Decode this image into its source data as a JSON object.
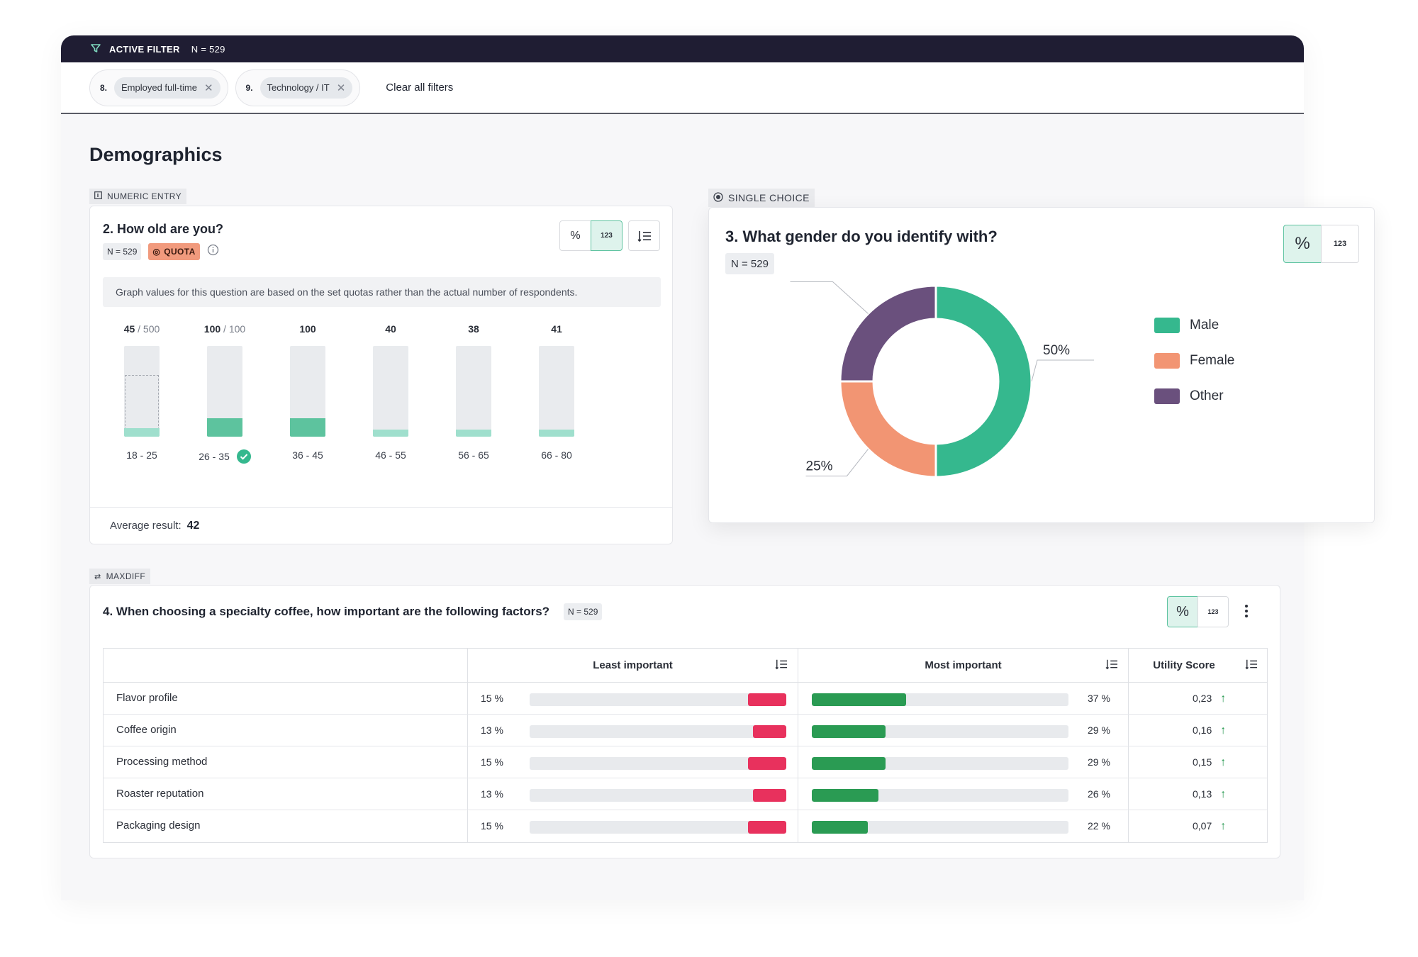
{
  "filter_bar": {
    "label": "ACTIVE FILTER",
    "n": "N = 529"
  },
  "chips": [
    {
      "num": "8.",
      "label": "Employed full-time"
    },
    {
      "num": "9.",
      "label": "Technology / IT"
    }
  ],
  "clear_label": "Clear all filters",
  "page_title": "Demographics",
  "q2": {
    "tag": "NUMERIC ENTRY",
    "title": "2. How old are you?",
    "n": "N = 529",
    "quota": "QUOTA",
    "note": "Graph values for this question are based on the set quotas rather than the actual number of respondents.",
    "toggle": {
      "percent": "%",
      "count": "123"
    },
    "avg_label": "Average result:",
    "avg_value": "42",
    "columns": [
      {
        "value": "45",
        "max": "/ 500",
        "range": "18 - 25",
        "fill_fraction": 0.09,
        "target_fraction": 0.68,
        "highlight": false,
        "check": false
      },
      {
        "value": "100",
        "max": "/ 100",
        "range": "26 - 35",
        "fill_fraction": 0.2,
        "highlight": true,
        "check": true
      },
      {
        "value": "100",
        "max": "",
        "range": "36 - 45",
        "fill_fraction": 0.2,
        "highlight": true,
        "check": false
      },
      {
        "value": "40",
        "max": "",
        "range": "46 - 55",
        "fill_fraction": 0.08,
        "highlight": false,
        "check": false
      },
      {
        "value": "38",
        "max": "",
        "range": "56 - 65",
        "fill_fraction": 0.08,
        "highlight": false,
        "check": false
      },
      {
        "value": "41",
        "max": "",
        "range": "66 - 80",
        "fill_fraction": 0.08,
        "highlight": false,
        "check": false
      }
    ],
    "colors": {
      "fill_light": "#9fdfcd",
      "fill_dark": "#5dc39e"
    }
  },
  "q3": {
    "tag": "SINGLE CHOICE",
    "title": "3. What gender do you identify with?",
    "n": "N = 529",
    "toggle": {
      "percent": "%",
      "count": "123"
    },
    "chart_data": {
      "type": "pie",
      "categories": [
        "Male",
        "Female",
        "Other"
      ],
      "values": [
        50,
        25,
        25
      ],
      "data_labels": [
        "50%",
        "25%",
        "25%"
      ],
      "colors": [
        "#35b88e",
        "#f29573",
        "#6a507d"
      ],
      "legend": "right"
    }
  },
  "q4": {
    "tag": "MAXDIFF",
    "title": "4. When choosing a specialty coffee, how important are the following factors?",
    "n": "N = 529",
    "toggle": {
      "percent": "%",
      "count": "123"
    },
    "headers": {
      "least": "Least important",
      "most": "Most important",
      "utility": "Utility Score"
    },
    "rows": [
      {
        "name": "Flavor profile",
        "least": "15 %",
        "least_value": 15,
        "most": "37 %",
        "most_value": 37,
        "utility": "0,23"
      },
      {
        "name": "Coffee origin",
        "least": "13 %",
        "least_value": 13,
        "most": "29 %",
        "most_value": 29,
        "utility": "0,16"
      },
      {
        "name": "Processing method",
        "least": "15 %",
        "least_value": 15,
        "most": "29 %",
        "most_value": 29,
        "utility": "0,15"
      },
      {
        "name": "Roaster reputation",
        "least": "13 %",
        "least_value": 13,
        "most": "26 %",
        "most_value": 26,
        "utility": "0,13"
      },
      {
        "name": "Packaging design",
        "least": "15 %",
        "least_value": 15,
        "most": "22 %",
        "most_value": 22,
        "utility": "0,07"
      }
    ]
  }
}
